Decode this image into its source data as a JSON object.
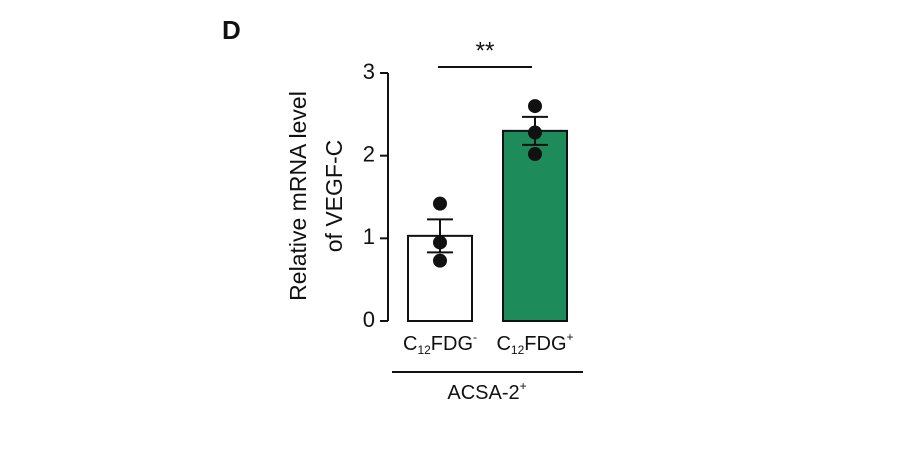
{
  "chart_data": {
    "type": "bar",
    "panel_label": "D",
    "ylabel": [
      "Relative mRNA level",
      "of VEGF-C"
    ],
    "categories": [
      [
        "C",
        "12",
        "FDG",
        "-"
      ],
      [
        "C",
        "12",
        "FDG",
        "+"
      ]
    ],
    "group_label": [
      "ACSA-2",
      "+"
    ],
    "significance": "**",
    "values": [
      1.03,
      2.3
    ],
    "errors": [
      0.2,
      0.17
    ],
    "points": [
      [
        1.42,
        0.95,
        0.73
      ],
      [
        2.6,
        2.28,
        2.02
      ]
    ],
    "colors": [
      "#ffffff",
      "#1e8c5a"
    ],
    "ylim": [
      0,
      3
    ],
    "yticks": [
      0,
      1,
      2,
      3
    ]
  }
}
